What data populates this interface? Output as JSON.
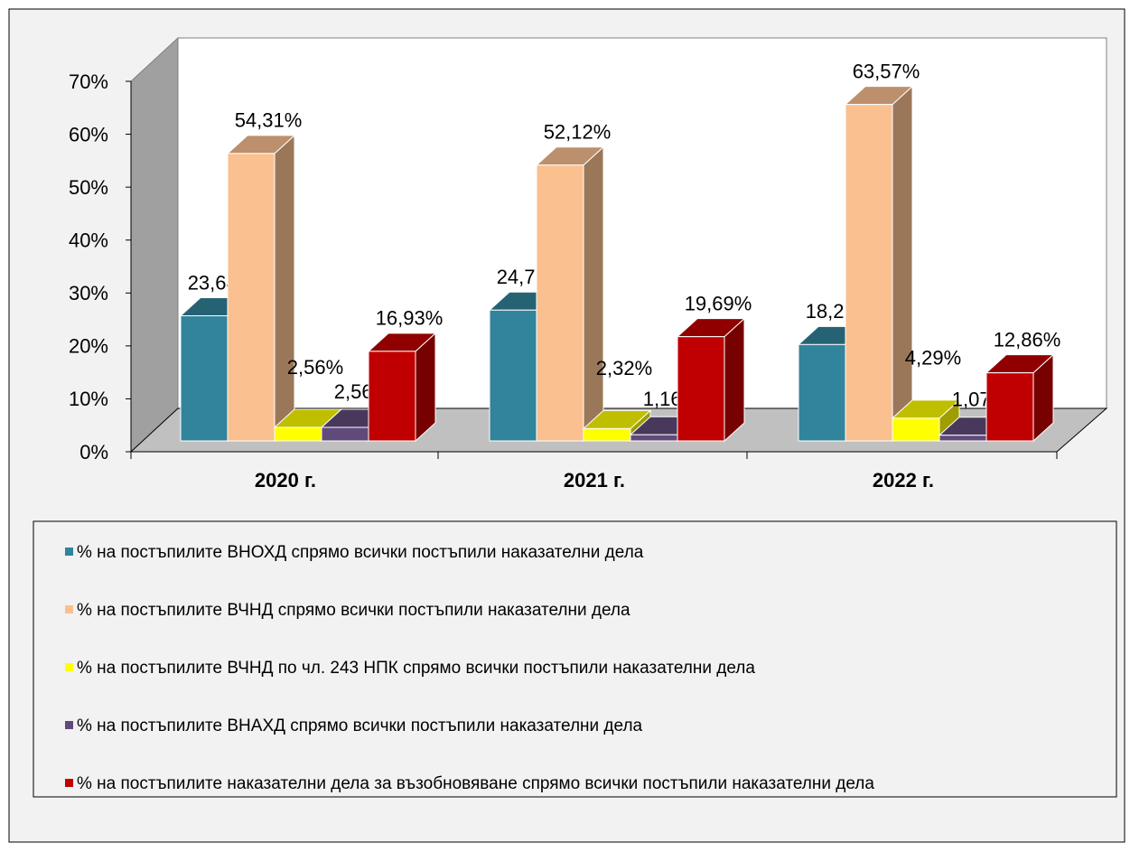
{
  "chart_data": {
    "type": "bar3d",
    "categories": [
      "2020 г.",
      "2021 г.",
      "2022 г."
    ],
    "series": [
      {
        "name": "% на постъпилите ВНОХД спрямо всички постъпили наказателни дела",
        "color": "#31849b",
        "values": [
          23.64,
          24.71,
          18.21
        ],
        "value_labels": [
          "23,64%",
          "24,71%",
          "18,21%"
        ]
      },
      {
        "name": "% на постъпилите ВЧНД спрямо всички постъпили наказателни дела",
        "color": "#fac090",
        "values": [
          54.31,
          52.12,
          63.57
        ],
        "value_labels": [
          "54,31%",
          "52,12%",
          "63,57%"
        ]
      },
      {
        "name": "% на постъпилите ВЧНД по чл. 243 НПК спрямо всички постъпили наказателни дела",
        "color": "#ffff00",
        "values": [
          2.56,
          2.32,
          4.29
        ],
        "value_labels": [
          "2,56%",
          "2,32%",
          "4,29%"
        ]
      },
      {
        "name": "% на постъпилите ВНАХД спрямо всички постъпили наказателни дела",
        "color": "#604a7b",
        "values": [
          2.56,
          1.16,
          1.07
        ],
        "value_labels": [
          "2,56%",
          "1,16%",
          "1,07%"
        ]
      },
      {
        "name": "% на постъпилите наказателни дела за възобновяване спрямо всички постъпили наказателни дела",
        "color": "#c00000",
        "values": [
          16.93,
          19.69,
          12.86
        ],
        "value_labels": [
          "16,93%",
          "19,69%",
          "12,86%"
        ]
      }
    ],
    "ylim": [
      0,
      70
    ],
    "yticks": [
      {
        "value": 0,
        "label": "0%"
      },
      {
        "value": 10,
        "label": "10%"
      },
      {
        "value": 20,
        "label": "20%"
      },
      {
        "value": 30,
        "label": "30%"
      },
      {
        "value": 40,
        "label": "40%"
      },
      {
        "value": 50,
        "label": "50%"
      },
      {
        "value": 60,
        "label": "60%"
      },
      {
        "value": 70,
        "label": "70%"
      }
    ],
    "legend": "bottom"
  }
}
